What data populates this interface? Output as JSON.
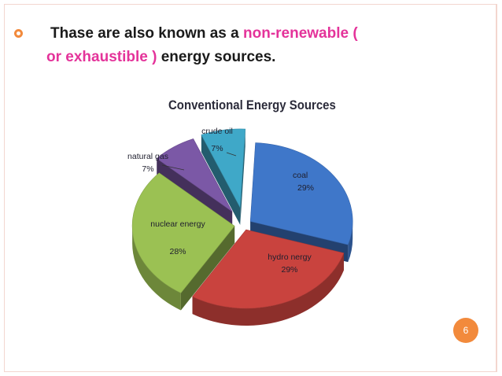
{
  "slide": {
    "bullet_lead": "Thase are also known as a",
    "bullet_highlight_1": "non-renewable (",
    "bullet_highlight_2": "or exhaustible )",
    "bullet_tail": "energy sources.",
    "page_number": "6",
    "accent_color": "#f28a3c",
    "highlight_color": "#e4339a"
  },
  "chart_data": {
    "type": "pie",
    "title": "Conventional Energy Sources",
    "slices": [
      {
        "label": "coal",
        "value": 29,
        "value_label": "29%",
        "color": "#3f77c9"
      },
      {
        "label": "hydro nergy",
        "value": 29,
        "value_label": "29%",
        "color": "#c9433e"
      },
      {
        "label": "nuclear energy",
        "value": 28,
        "value_label": "28%",
        "color": "#9bc153"
      },
      {
        "label": "natural gas",
        "value": 7,
        "value_label": "7%",
        "color": "#7b58a6"
      },
      {
        "label": "crude oil",
        "value": 7,
        "value_label": "7%",
        "color": "#3fa8c8"
      }
    ],
    "exploded": true,
    "three_d": true
  }
}
